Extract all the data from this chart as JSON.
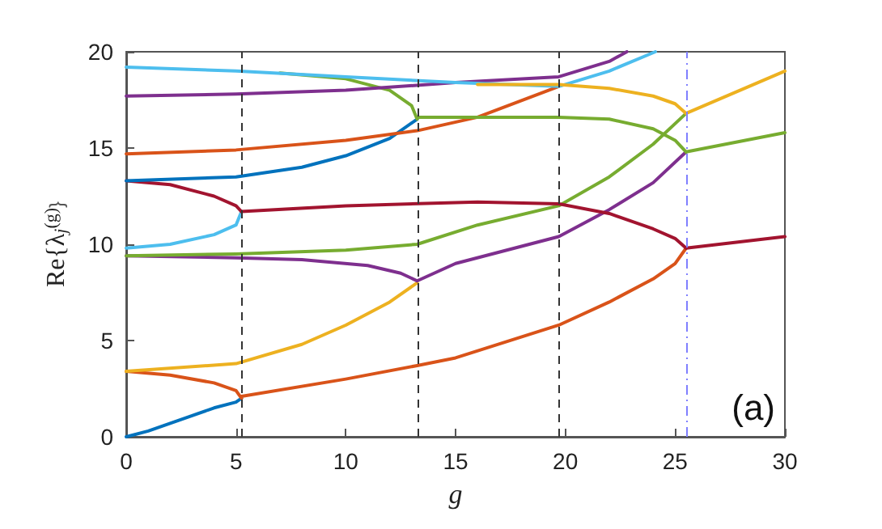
{
  "chart_data": {
    "type": "line",
    "xlabel": "g",
    "ylabel": "Re{λ$_{j}$$^{(g)}$}",
    "annotations": [
      "(a)"
    ],
    "xlim": [
      0,
      30
    ],
    "xticks": [
      0,
      5,
      10,
      15,
      20,
      25,
      30
    ],
    "ylim": [
      0,
      20
    ],
    "yticks": [
      0,
      5,
      10,
      15,
      20
    ],
    "grid": false,
    "marker": "none",
    "line_style": "solid",
    "series": [
      {
        "color": "#0072bd",
        "x": [
          0,
          1,
          2,
          3,
          4,
          5,
          5.25
        ],
        "values": [
          0,
          0.3,
          0.7,
          1.1,
          1.5,
          1.8,
          2.0
        ]
      },
      {
        "color": "#d95319",
        "x": [
          0,
          2,
          4,
          5,
          5.25
        ],
        "values": [
          3.4,
          3.2,
          2.8,
          2.4,
          2.0
        ]
      },
      {
        "color": "#d95319",
        "x": [
          5.25,
          10,
          13.25,
          15,
          19.7,
          22,
          24,
          25,
          25.5
        ],
        "values": [
          2.1,
          3.0,
          3.7,
          4.1,
          5.8,
          7.0,
          8.2,
          9.0,
          9.8
        ]
      },
      {
        "color": "#edb120",
        "x": [
          0,
          5,
          8,
          10,
          12,
          13.25
        ],
        "values": [
          3.4,
          3.8,
          4.8,
          5.8,
          7.0,
          8.0
        ]
      },
      {
        "color": "#7e2f8e",
        "x": [
          0,
          5,
          8,
          11,
          12.5,
          13.25
        ],
        "values": [
          9.4,
          9.3,
          9.2,
          8.9,
          8.5,
          8.1
        ]
      },
      {
        "color": "#7e2f8e",
        "x": [
          13.25,
          15,
          19.7,
          22,
          24,
          25.5
        ],
        "values": [
          8.1,
          9.0,
          10.4,
          11.8,
          13.2,
          14.8
        ]
      },
      {
        "color": "#77ac30",
        "x": [
          0,
          5,
          10,
          13.25,
          16,
          19.7,
          22,
          24,
          25.5
        ],
        "values": [
          9.4,
          9.5,
          9.7,
          10.0,
          11.0,
          12.0,
          13.5,
          15.2,
          16.8
        ]
      },
      {
        "color": "#4dbeee",
        "x": [
          0,
          2,
          4,
          5,
          5.25
        ],
        "values": [
          9.8,
          10.0,
          10.5,
          11.0,
          11.7
        ]
      },
      {
        "color": "#a2142f",
        "x": [
          0,
          2,
          4,
          5,
          5.25
        ],
        "values": [
          13.3,
          13.1,
          12.5,
          12.0,
          11.7
        ]
      },
      {
        "color": "#a2142f",
        "x": [
          5.25,
          10,
          16,
          19.7,
          22,
          24,
          25,
          25.5
        ],
        "values": [
          11.7,
          12.0,
          12.2,
          12.1,
          11.6,
          10.8,
          10.3,
          9.8
        ]
      },
      {
        "color": "#a2142f",
        "x": [
          25.5,
          30
        ],
        "values": [
          9.8,
          10.4
        ]
      },
      {
        "color": "#0072bd",
        "x": [
          0,
          5,
          8,
          10,
          12,
          13.25
        ],
        "values": [
          13.3,
          13.5,
          14.0,
          14.6,
          15.5,
          16.5
        ]
      },
      {
        "color": "#d95319",
        "x": [
          0,
          5,
          10,
          13.25,
          16,
          19.7
        ],
        "values": [
          14.7,
          14.9,
          15.4,
          15.9,
          16.6,
          18.2
        ]
      },
      {
        "color": "#77ac30",
        "x": [
          7,
          10,
          12,
          13,
          13.25
        ],
        "values": [
          18.9,
          18.6,
          18.0,
          17.2,
          16.5
        ]
      },
      {
        "color": "#77ac30",
        "x": [
          13.25,
          16,
          19.7,
          22,
          24,
          25,
          25.5
        ],
        "values": [
          16.6,
          16.6,
          16.6,
          16.5,
          16.0,
          15.4,
          14.8
        ]
      },
      {
        "color": "#77ac30",
        "x": [
          25.5,
          30
        ],
        "values": [
          14.8,
          15.8
        ]
      },
      {
        "color": "#7e2f8e",
        "x": [
          0,
          5,
          10,
          15,
          19.7,
          22,
          22.8
        ],
        "values": [
          17.7,
          17.8,
          18.0,
          18.4,
          18.7,
          19.5,
          20
        ]
      },
      {
        "color": "#4dbeee",
        "x": [
          0,
          5,
          10,
          15,
          19.7,
          22,
          24.1
        ],
        "values": [
          19.2,
          19.0,
          18.7,
          18.4,
          18.2,
          19.0,
          20
        ]
      },
      {
        "color": "#edb120",
        "x": [
          16,
          19.7,
          22,
          24,
          25,
          25.5
        ],
        "values": [
          18.3,
          18.3,
          18.1,
          17.7,
          17.3,
          16.8
        ]
      },
      {
        "color": "#edb120",
        "x": [
          25.5,
          30
        ],
        "values": [
          16.8,
          19.0
        ]
      }
    ],
    "ref_lines": [
      {
        "axis": "x",
        "value": 5.25,
        "color": "#333333",
        "line_style": "dashed"
      },
      {
        "axis": "x",
        "value": 13.25,
        "color": "#333333",
        "line_style": "dashed"
      },
      {
        "axis": "x",
        "value": 19.7,
        "color": "#333333",
        "line_style": "dashed"
      },
      {
        "axis": "x",
        "value": 25.5,
        "color": "#8080ff",
        "line_style": "dashdot"
      }
    ]
  }
}
